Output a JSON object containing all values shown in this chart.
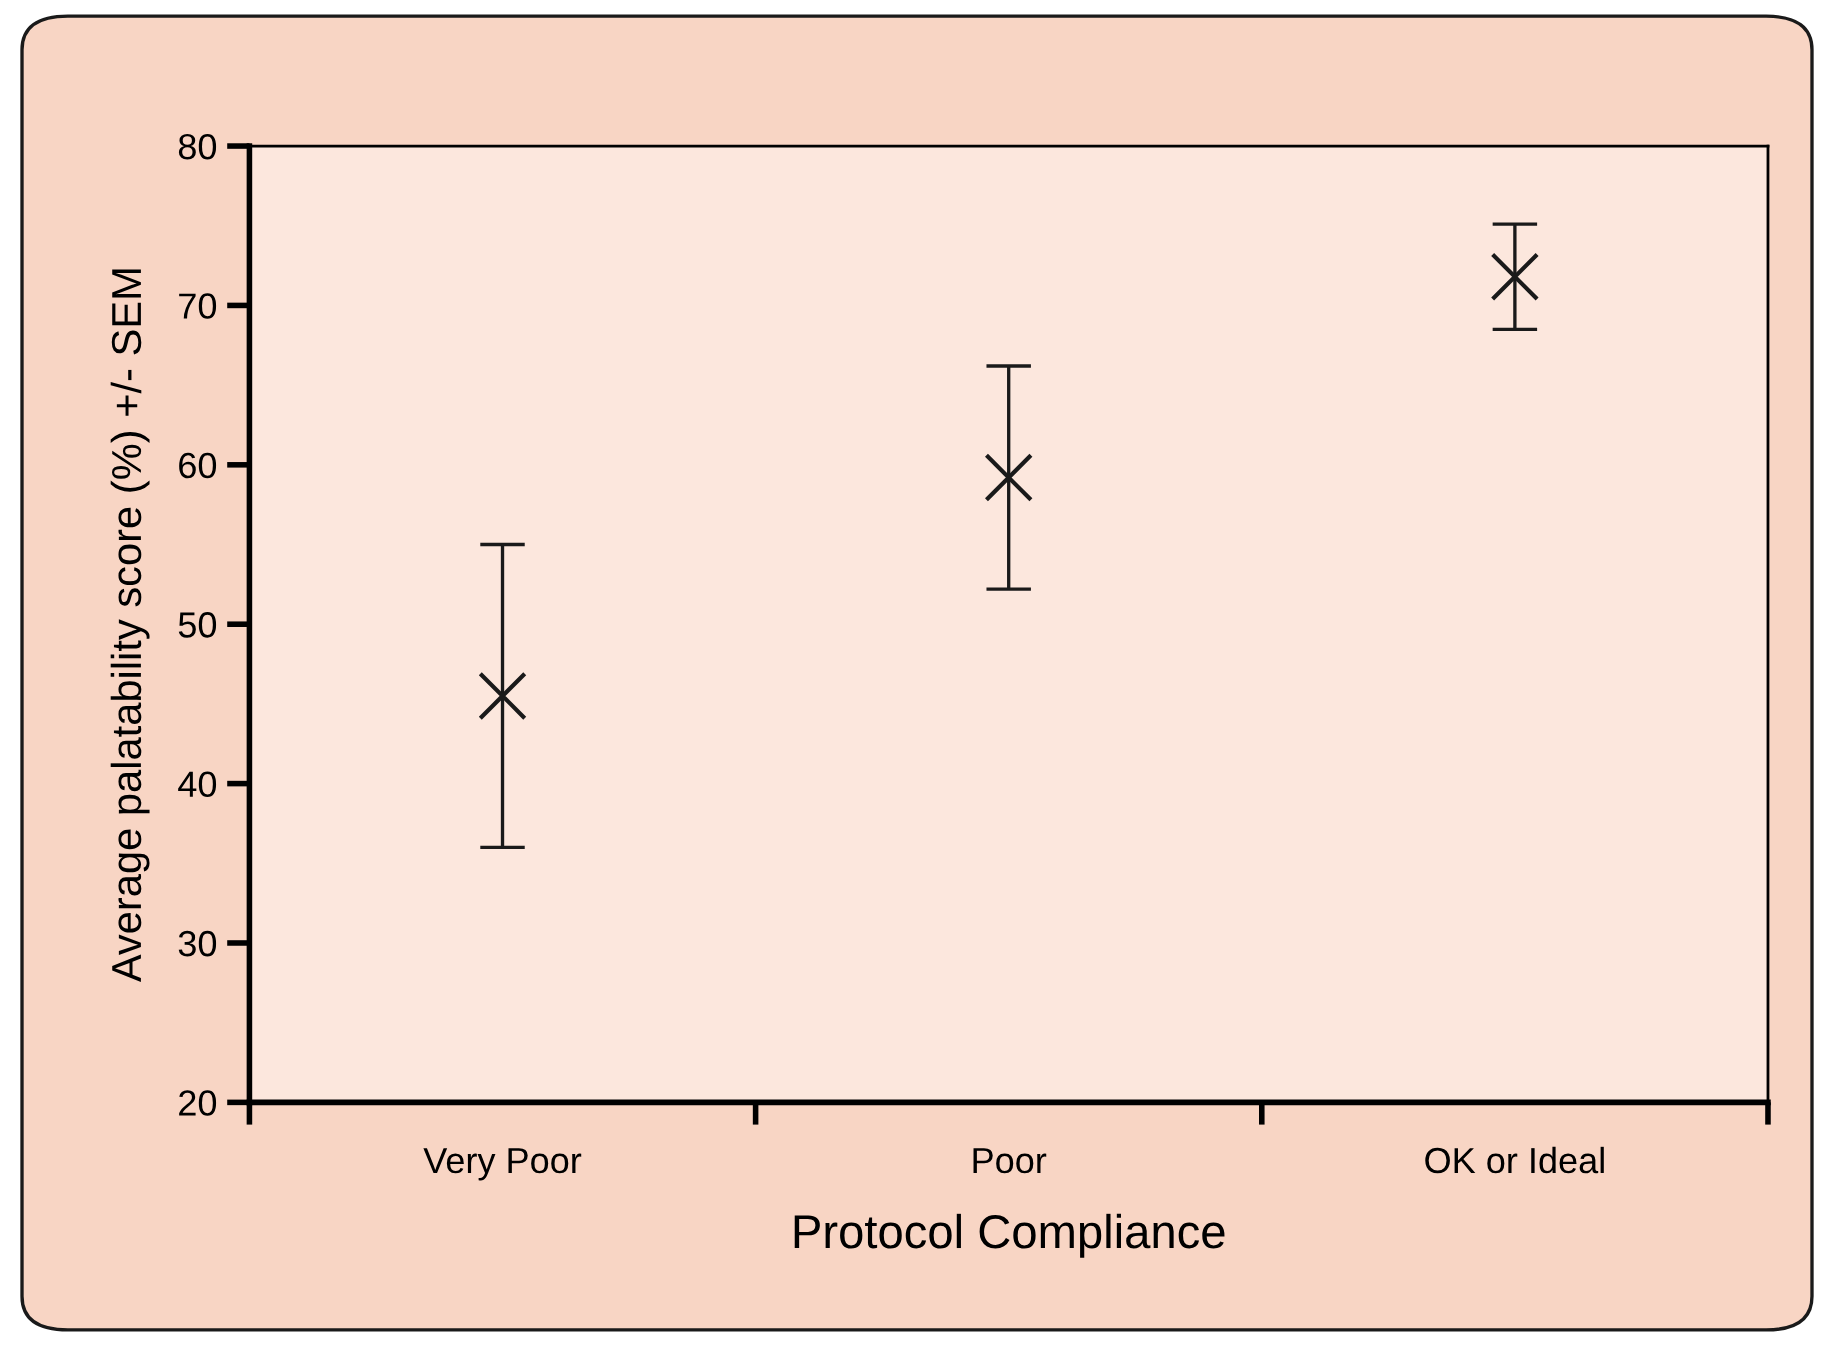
{
  "chart_data": {
    "type": "scatter",
    "xlabel": "Protocol Compliance",
    "ylabel": "Average palatability score (%) +/- SEM",
    "categories": [
      "Very Poor",
      "Poor",
      "OK or Ideal"
    ],
    "series": [
      {
        "color": "#1a1a1a",
        "values": [
          45.5,
          59.2,
          71.8
        ],
        "errors": [
          9.5,
          7,
          3.3
        ]
      }
    ],
    "marker": "cross",
    "ylim": [
      20,
      80
    ],
    "yticks": [
      20,
      30,
      40,
      50,
      60,
      70,
      80
    ],
    "grid": false,
    "legend": false
  }
}
